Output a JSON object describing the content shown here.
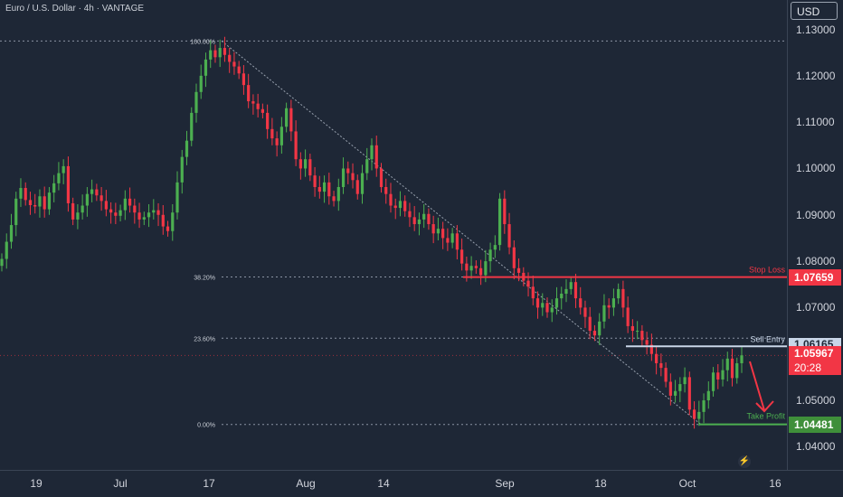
{
  "header": {
    "symbol": "Euro / U.S. Dollar",
    "interval": "4h",
    "broker": "VANTAGE",
    "currency_button": "USD"
  },
  "chart_data": {
    "type": "candlestick",
    "ylim": [
      1.035,
      1.134
    ],
    "price_ticks": [
      "1.13000",
      "1.12000",
      "1.11000",
      "1.10000",
      "1.09000",
      "1.08000",
      "1.07000",
      "1.06000",
      "1.05000",
      "1.04000"
    ],
    "time_ticks": [
      "19",
      "Jul",
      "17",
      "Aug",
      "14",
      "Sep",
      "18",
      "Oct",
      "16"
    ],
    "fib_levels": [
      {
        "label": "100.00%",
        "price": 1.1275
      },
      {
        "label": "38.20%",
        "price": 1.0766
      },
      {
        "label": "23.60%",
        "price": 1.0634
      },
      {
        "label": "0.00%",
        "price": 1.0448
      }
    ],
    "trade_levels": [
      {
        "name": "Stop Loss",
        "price": "1.07659",
        "color": "#f23645"
      },
      {
        "name": "Sell Entry",
        "price": "1.06165",
        "color": "#c9d6e8"
      },
      {
        "name": "Take Profit",
        "price": "1.04481",
        "color": "#4caf50"
      }
    ],
    "last_price": "1.05967",
    "countdown": "20:28",
    "close_series": [
      1.0805,
      1.0842,
      1.0878,
      1.0935,
      1.0958,
      1.0932,
      1.0921,
      1.0918,
      1.094,
      1.0912,
      1.0948,
      1.0968,
      1.099,
      1.1005,
      1.0925,
      1.089,
      1.0905,
      1.092,
      1.0945,
      1.0955,
      1.0942,
      1.093,
      1.0912,
      1.0905,
      1.0898,
      1.091,
      1.0935,
      1.092,
      1.0905,
      1.089,
      1.0895,
      1.0905,
      1.091,
      1.09,
      1.0875,
      1.0865,
      1.0905,
      1.097,
      1.1025,
      1.106,
      1.112,
      1.1165,
      1.12,
      1.1235,
      1.1255,
      1.124,
      1.126,
      1.1245,
      1.123,
      1.122,
      1.1205,
      1.118,
      1.1145,
      1.114,
      1.1128,
      1.112,
      1.1085,
      1.1065,
      1.105,
      1.109,
      1.113,
      1.108,
      1.102,
      1.1,
      1.102,
      1.0985,
      1.096,
      1.095,
      1.097,
      1.094,
      1.093,
      1.096,
      1.1,
      1.099,
      1.0975,
      1.0945,
      1.099,
      1.102,
      1.105,
      1.1,
      1.096,
      1.0945,
      1.092,
      1.0915,
      1.093,
      1.0908,
      1.0895,
      1.088,
      1.089,
      1.0902,
      1.088,
      1.086,
      1.087,
      1.085,
      1.084,
      1.086,
      1.0825,
      1.0795,
      1.078,
      1.079,
      1.0785,
      1.077,
      1.08,
      1.0825,
      1.0835,
      1.0935,
      1.088,
      1.083,
      1.0785,
      1.0775,
      1.0758,
      1.0745,
      1.072,
      1.07,
      1.071,
      1.069,
      1.07,
      1.072,
      1.073,
      1.074,
      1.0755,
      1.072,
      1.07,
      1.068,
      1.065,
      1.064,
      1.067,
      1.0705,
      1.07,
      1.072,
      1.074,
      1.07,
      1.066,
      1.065,
      1.065,
      1.063,
      1.062,
      1.06,
      1.058,
      1.057,
      1.054,
      1.051,
      1.052,
      1.0535,
      1.055,
      1.048,
      1.046,
      1.0475,
      1.05,
      1.052,
      1.056,
      1.0545,
      1.0565,
      1.059,
      1.0548,
      1.058,
      1.0597
    ]
  },
  "extra_labels": {
    "flash_icon": "⚡"
  }
}
